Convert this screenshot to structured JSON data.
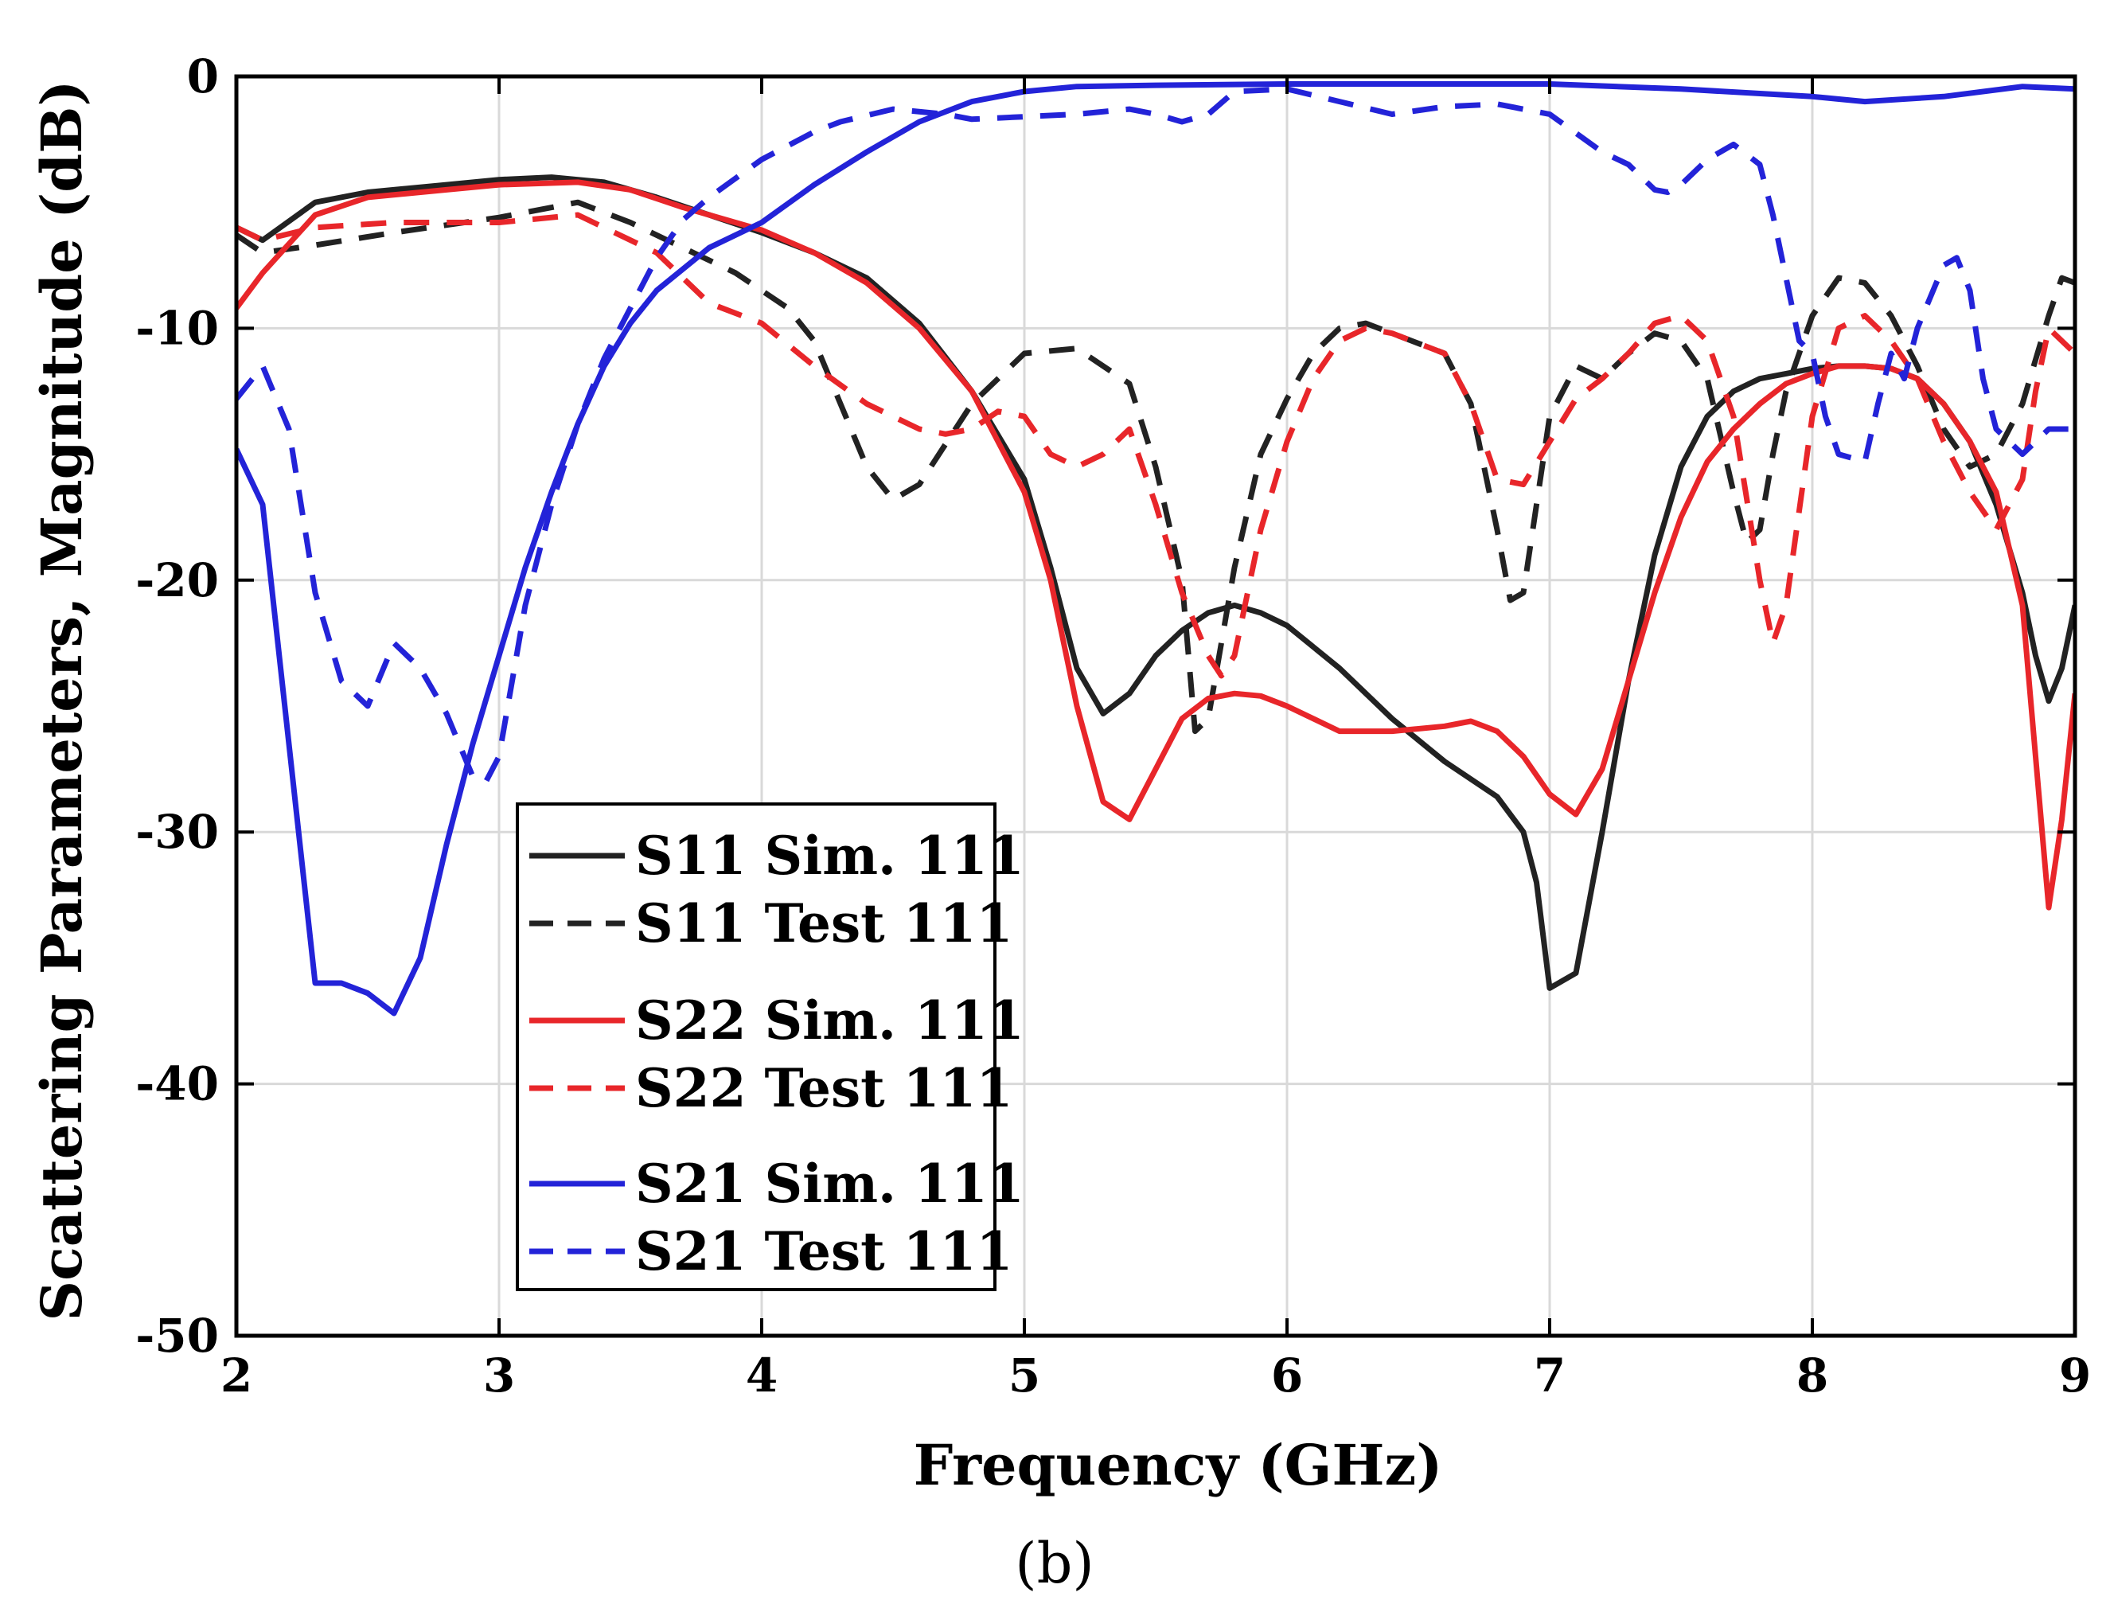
{
  "chart_data": {
    "type": "line",
    "title": "",
    "caption": "(b)",
    "xlabel": "Frequency (GHz)",
    "ylabel": "Scattering Parameters, Magnitude (dB)",
    "xlim": [
      2,
      9
    ],
    "ylim": [
      -50,
      0
    ],
    "xticks": [
      2,
      3,
      4,
      5,
      6,
      7,
      8,
      9
    ],
    "yticks": [
      0,
      -10,
      -20,
      -30,
      -40,
      -50
    ],
    "grid": true,
    "legend_position": "bottom-left",
    "series": [
      {
        "name": "S11 Sim. 111",
        "color": "#222222",
        "dash": "solid",
        "x": [
          2.0,
          2.1,
          2.3,
          2.5,
          2.8,
          3.0,
          3.2,
          3.4,
          3.6,
          3.8,
          4.0,
          4.2,
          4.4,
          4.6,
          4.8,
          5.0,
          5.1,
          5.2,
          5.3,
          5.4,
          5.5,
          5.6,
          5.7,
          5.8,
          5.9,
          6.0,
          6.2,
          6.4,
          6.6,
          6.8,
          6.9,
          6.95,
          7.0,
          7.1,
          7.2,
          7.3,
          7.4,
          7.5,
          7.6,
          7.7,
          7.8,
          7.9,
          8.0,
          8.1,
          8.2,
          8.3,
          8.4,
          8.5,
          8.6,
          8.7,
          8.8,
          8.85,
          8.9,
          8.95,
          9.0
        ],
        "y": [
          -6.0,
          -6.5,
          -5.0,
          -4.6,
          -4.3,
          -4.1,
          -4.0,
          -4.2,
          -4.8,
          -5.5,
          -6.2,
          -7.0,
          -8.0,
          -9.8,
          -12.5,
          -16.0,
          -19.5,
          -23.5,
          -25.3,
          -24.5,
          -23.0,
          -22.0,
          -21.3,
          -21.0,
          -21.3,
          -21.8,
          -23.5,
          -25.5,
          -27.2,
          -28.6,
          -30.0,
          -32.0,
          -36.2,
          -35.6,
          -30.0,
          -24.0,
          -19.0,
          -15.5,
          -13.5,
          -12.5,
          -12.0,
          -11.8,
          -11.6,
          -11.5,
          -11.5,
          -11.6,
          -12.0,
          -13.0,
          -14.5,
          -17.0,
          -20.5,
          -23.0,
          -24.8,
          -23.5,
          -21.0
        ]
      },
      {
        "name": "S11 Test 111",
        "color": "#222222",
        "dash": "dashed",
        "x": [
          2.0,
          2.1,
          2.3,
          2.6,
          3.0,
          3.3,
          3.5,
          3.7,
          3.9,
          4.1,
          4.2,
          4.3,
          4.4,
          4.5,
          4.6,
          4.8,
          5.0,
          5.2,
          5.4,
          5.5,
          5.6,
          5.65,
          5.7,
          5.8,
          5.9,
          6.0,
          6.1,
          6.2,
          6.3,
          6.4,
          6.6,
          6.7,
          6.8,
          6.85,
          6.9,
          6.95,
          7.0,
          7.1,
          7.2,
          7.3,
          7.4,
          7.5,
          7.6,
          7.7,
          7.75,
          7.8,
          7.85,
          7.9,
          8.0,
          8.1,
          8.2,
          8.3,
          8.4,
          8.5,
          8.6,
          8.7,
          8.8,
          8.9,
          8.95,
          9.0
        ],
        "y": [
          -6.3,
          -7.0,
          -6.7,
          -6.2,
          -5.6,
          -5.0,
          -5.8,
          -6.8,
          -7.8,
          -9.2,
          -10.5,
          -13.0,
          -15.5,
          -16.8,
          -16.2,
          -13.0,
          -11.0,
          -10.8,
          -12.2,
          -15.5,
          -20.0,
          -26.0,
          -25.5,
          -19.5,
          -15.0,
          -12.8,
          -11.0,
          -10.0,
          -9.8,
          -10.2,
          -11.0,
          -13.0,
          -18.0,
          -20.8,
          -20.5,
          -17.0,
          -13.5,
          -11.5,
          -12.0,
          -11.0,
          -10.2,
          -10.5,
          -12.0,
          -16.5,
          -18.5,
          -18.0,
          -15.0,
          -12.5,
          -9.5,
          -8.0,
          -8.2,
          -9.5,
          -11.5,
          -14.0,
          -15.5,
          -15.0,
          -13.0,
          -9.5,
          -8.0,
          -8.2
        ]
      },
      {
        "name": "S22 Sim. 111",
        "color": "#e8262a",
        "dash": "solid",
        "x": [
          2.0,
          2.1,
          2.3,
          2.5,
          2.8,
          3.0,
          3.3,
          3.5,
          3.7,
          3.9,
          4.0,
          4.2,
          4.4,
          4.6,
          4.8,
          5.0,
          5.1,
          5.2,
          5.3,
          5.4,
          5.5,
          5.6,
          5.7,
          5.8,
          5.9,
          6.0,
          6.2,
          6.4,
          6.6,
          6.7,
          6.8,
          6.9,
          7.0,
          7.1,
          7.2,
          7.3,
          7.4,
          7.5,
          7.6,
          7.7,
          7.8,
          7.9,
          8.0,
          8.1,
          8.2,
          8.3,
          8.4,
          8.5,
          8.6,
          8.7,
          8.8,
          8.85,
          8.9,
          8.95,
          9.0
        ],
        "y": [
          -9.2,
          -7.8,
          -5.5,
          -4.8,
          -4.5,
          -4.3,
          -4.2,
          -4.5,
          -5.2,
          -5.8,
          -6.1,
          -7.0,
          -8.2,
          -10.0,
          -12.5,
          -16.5,
          -20.0,
          -25.0,
          -28.8,
          -29.5,
          -27.5,
          -25.5,
          -24.7,
          -24.5,
          -24.6,
          -25.0,
          -26.0,
          -26.0,
          -25.8,
          -25.6,
          -26.0,
          -27.0,
          -28.5,
          -29.3,
          -27.5,
          -24.0,
          -20.5,
          -17.5,
          -15.3,
          -14.0,
          -13.0,
          -12.2,
          -11.8,
          -11.5,
          -11.5,
          -11.6,
          -12.0,
          -13.0,
          -14.5,
          -16.5,
          -21.0,
          -27.0,
          -33.0,
          -29.5,
          -24.5
        ]
      },
      {
        "name": "S22 Test 111",
        "color": "#e8262a",
        "dash": "dashed",
        "x": [
          2.0,
          2.1,
          2.3,
          2.6,
          3.0,
          3.3,
          3.6,
          3.8,
          4.0,
          4.2,
          4.4,
          4.6,
          4.7,
          4.8,
          4.9,
          5.0,
          5.1,
          5.2,
          5.3,
          5.4,
          5.5,
          5.6,
          5.7,
          5.75,
          5.8,
          5.9,
          6.0,
          6.1,
          6.2,
          6.3,
          6.4,
          6.6,
          6.7,
          6.8,
          6.9,
          7.0,
          7.1,
          7.2,
          7.3,
          7.4,
          7.5,
          7.6,
          7.7,
          7.8,
          7.85,
          7.9,
          8.0,
          8.1,
          8.2,
          8.3,
          8.4,
          8.5,
          8.6,
          8.7,
          8.8,
          8.85,
          8.9,
          9.0
        ],
        "y": [
          -6.0,
          -6.5,
          -6.0,
          -5.8,
          -5.8,
          -5.5,
          -7.0,
          -9.0,
          -9.8,
          -11.5,
          -13.0,
          -14.0,
          -14.2,
          -14.0,
          -13.3,
          -13.5,
          -15.0,
          -15.5,
          -15.0,
          -14.0,
          -17.0,
          -20.5,
          -23.0,
          -23.8,
          -23.0,
          -18.0,
          -14.5,
          -12.0,
          -10.5,
          -10.0,
          -10.2,
          -11.0,
          -13.0,
          -16.0,
          -16.2,
          -14.5,
          -12.8,
          -12.0,
          -11.0,
          -9.8,
          -9.5,
          -10.5,
          -13.5,
          -20.0,
          -22.5,
          -21.0,
          -13.5,
          -10.0,
          -9.5,
          -10.5,
          -12.0,
          -14.5,
          -16.5,
          -18.0,
          -16.0,
          -12.5,
          -10.0,
          -11.0
        ]
      },
      {
        "name": "S21 Sim. 111",
        "color": "#2323d8",
        "dash": "solid",
        "x": [
          2.0,
          2.1,
          2.2,
          2.3,
          2.4,
          2.5,
          2.6,
          2.7,
          2.8,
          2.9,
          3.0,
          3.1,
          3.2,
          3.3,
          3.4,
          3.5,
          3.6,
          3.8,
          4.0,
          4.2,
          4.4,
          4.6,
          4.8,
          5.0,
          5.2,
          5.5,
          6.0,
          6.5,
          7.0,
          7.5,
          8.0,
          8.2,
          8.5,
          8.8,
          9.0
        ],
        "y": [
          -14.8,
          -17.0,
          -26.5,
          -36.0,
          -36.0,
          -36.4,
          -37.2,
          -35.0,
          -30.5,
          -26.5,
          -23.0,
          -19.5,
          -16.5,
          -13.8,
          -11.5,
          -9.8,
          -8.5,
          -6.8,
          -5.8,
          -4.3,
          -3.0,
          -1.8,
          -1.0,
          -0.6,
          -0.4,
          -0.35,
          -0.3,
          -0.3,
          -0.3,
          -0.5,
          -0.8,
          -1.0,
          -0.8,
          -0.4,
          -0.5
        ]
      },
      {
        "name": "S21 Test 111",
        "color": "#2323d8",
        "dash": "dashed",
        "x": [
          2.0,
          2.1,
          2.2,
          2.3,
          2.4,
          2.5,
          2.6,
          2.7,
          2.8,
          2.9,
          2.95,
          3.0,
          3.1,
          3.2,
          3.3,
          3.4,
          3.5,
          3.6,
          3.7,
          3.8,
          4.0,
          4.2,
          4.3,
          4.5,
          4.7,
          4.8,
          5.0,
          5.2,
          5.4,
          5.5,
          5.6,
          5.7,
          5.8,
          6.0,
          6.2,
          6.4,
          6.6,
          6.8,
          7.0,
          7.2,
          7.3,
          7.4,
          7.45,
          7.5,
          7.6,
          7.7,
          7.8,
          7.85,
          7.9,
          7.95,
          8.0,
          8.05,
          8.1,
          8.2,
          8.25,
          8.3,
          8.35,
          8.4,
          8.5,
          8.55,
          8.6,
          8.65,
          8.7,
          8.8,
          8.9,
          9.0
        ],
        "y": [
          -12.8,
          -11.5,
          -14.0,
          -20.5,
          -24.0,
          -25.0,
          -22.5,
          -23.5,
          -25.3,
          -27.8,
          -28.0,
          -27.0,
          -21.0,
          -17.0,
          -13.8,
          -11.2,
          -9.2,
          -7.2,
          -5.7,
          -4.8,
          -3.3,
          -2.2,
          -1.8,
          -1.3,
          -1.5,
          -1.7,
          -1.6,
          -1.5,
          -1.3,
          -1.5,
          -1.8,
          -1.5,
          -0.6,
          -0.5,
          -1.0,
          -1.5,
          -1.2,
          -1.1,
          -1.5,
          -3.0,
          -3.5,
          -4.5,
          -4.6,
          -4.3,
          -3.3,
          -2.7,
          -3.5,
          -5.5,
          -8.0,
          -10.5,
          -11.0,
          -13.5,
          -15.0,
          -15.3,
          -13.0,
          -11.0,
          -12.0,
          -10.0,
          -7.5,
          -7.2,
          -8.5,
          -12.0,
          -14.0,
          -15.0,
          -14.0,
          -14.0
        ]
      }
    ]
  }
}
